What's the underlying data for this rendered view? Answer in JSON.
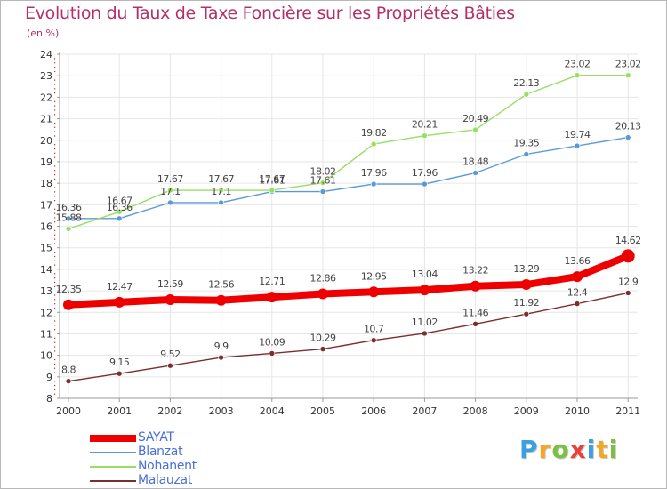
{
  "chart_data": {
    "type": "line",
    "title": "Evolution du Taux de Taxe Foncière sur les Propriétés Bâties",
    "subtitle": "(en %)",
    "xlabel": "",
    "ylabel": "",
    "ylim": [
      8,
      24
    ],
    "grid": true,
    "legend": "bottom-left",
    "x": [
      "2000",
      "2001",
      "2002",
      "2003",
      "2004",
      "2005",
      "2006",
      "2007",
      "2008",
      "2009",
      "2010",
      "2011"
    ],
    "y_ticks": [
      "8",
      "9",
      "10",
      "11",
      "12",
      "13",
      "14",
      "15",
      "16",
      "17",
      "18",
      "19",
      "20",
      "21",
      "22",
      "23",
      "24"
    ],
    "series": [
      {
        "name": "SAYAT",
        "color": "#ee0000",
        "values": [
          12.35,
          12.47,
          12.59,
          12.56,
          12.71,
          12.86,
          12.95,
          13.04,
          13.22,
          13.29,
          13.66,
          14.62
        ],
        "labels": [
          "12.35",
          "12.47",
          "12.59",
          "12.56",
          "12.71",
          "12.86",
          "12.95",
          "13.04",
          "13.22",
          "13.29",
          "13.66",
          "14.62"
        ]
      },
      {
        "name": "Blanzat",
        "color": "#5b9bd5",
        "values": [
          16.36,
          16.36,
          17.1,
          17.1,
          17.61,
          17.61,
          17.96,
          17.96,
          18.48,
          19.35,
          19.74,
          20.13
        ],
        "labels": [
          "16.36",
          "16.36",
          "17.1",
          "17.1",
          "17.61",
          "17.61",
          "17.96",
          "17.96",
          "18.48",
          "19.35",
          "19.74",
          "20.13"
        ]
      },
      {
        "name": "Nohanent",
        "color": "#99dd66",
        "values": [
          15.88,
          16.67,
          17.67,
          17.67,
          17.67,
          18.02,
          19.82,
          20.21,
          20.49,
          22.13,
          23.02,
          23.02
        ],
        "labels": [
          "15.88",
          "16.67",
          "17.67",
          "17.67",
          "17.67",
          "18.02",
          "19.82",
          "20.21",
          "20.49",
          "22.13",
          "23.02",
          "23.02"
        ]
      },
      {
        "name": "Malauzat",
        "color": "#7a2e2e",
        "values": [
          8.8,
          9.15,
          9.52,
          9.9,
          10.09,
          10.29,
          10.7,
          11.02,
          11.46,
          11.92,
          12.4,
          12.9
        ],
        "labels": [
          "8.8",
          "9.15",
          "9.52",
          "9.9",
          "10.09",
          "10.29",
          "10.7",
          "11.02",
          "11.46",
          "11.92",
          "12.4",
          "12.9"
        ]
      }
    ]
  },
  "logo": {
    "letters": [
      "P",
      "r",
      "o",
      "x",
      "i",
      "t",
      "i"
    ],
    "colors": [
      "#3aa0e0",
      "#f5a623",
      "#7ac143",
      "#e8423a",
      "#3aa0e0",
      "#f5a623",
      "#7ac143"
    ]
  }
}
